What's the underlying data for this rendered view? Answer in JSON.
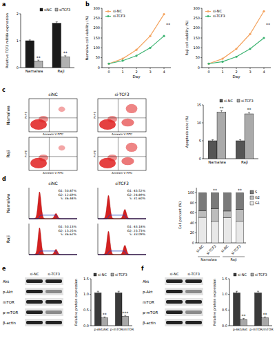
{
  "panel_labels": [
    "a",
    "b",
    "c",
    "d",
    "e",
    "f"
  ],
  "chart_data": [
    {
      "type": "bar",
      "y_label": "Relative TCF3 mRNA expression",
      "categories": [
        "Namalwa",
        "Raji"
      ],
      "series": [
        {
          "name": "siNC",
          "color": "#1a1a1a",
          "values": [
            1,
            1.65
          ],
          "errors": [
            0.03,
            0.05
          ]
        },
        {
          "name": "siTCF3",
          "color": "#b0b0b0",
          "values": [
            0.25,
            0.4
          ],
          "errors": [
            0.03,
            0.04
          ],
          "significance": [
            "**",
            "**"
          ]
        }
      ],
      "ylim": [
        0,
        2
      ],
      "yticks": [
        0,
        1,
        2
      ],
      "legend": "top-right"
    },
    {
      "type": "line",
      "y_label": "Namalwa cell viability (%)",
      "x_label": "Day",
      "x": [
        0,
        1,
        2,
        3,
        4
      ],
      "xlim": [
        -0.5,
        4.5
      ],
      "xticks": [
        0,
        1,
        2,
        3,
        4
      ],
      "series": [
        {
          "name": "si-NC",
          "color": "#f4a460",
          "marker": "circle",
          "values": [
            20,
            45,
            90,
            160,
            270
          ]
        },
        {
          "name": "si-TCF3",
          "color": "#3cb371",
          "marker": "circle",
          "values": [
            20,
            35,
            60,
            100,
            160
          ]
        }
      ],
      "ylim": [
        0,
        300
      ],
      "yticks": [
        0,
        50,
        100,
        150,
        200,
        250,
        300
      ],
      "legend": "top-left",
      "annotations": [
        {
          "text": "**",
          "x": 4
        }
      ]
    },
    {
      "type": "line",
      "y_label": "Raji cell viability (%)",
      "x_label": "Day",
      "x": [
        0,
        1,
        2,
        3,
        4
      ],
      "xlim": [
        -0.5,
        4.5
      ],
      "xticks": [
        0,
        1,
        2,
        3,
        4
      ],
      "series": [
        {
          "name": "si-NC",
          "color": "#f4a460",
          "marker": "circle",
          "values": [
            20,
            45,
            95,
            170,
            285
          ]
        },
        {
          "name": "si-TCF3",
          "color": "#3cb371",
          "marker": "circle",
          "values": [
            20,
            30,
            55,
            95,
            150
          ]
        }
      ],
      "ylim": [
        0,
        300
      ],
      "yticks": [
        0,
        50,
        100,
        150,
        200,
        250,
        300
      ],
      "legend": "top-left",
      "annotations": [
        {
          "text": "**",
          "x": 4
        }
      ]
    },
    {
      "type": "bar",
      "y_label": "Apoptosis rate (%)",
      "categories": [
        "Namalwa",
        "Raji"
      ],
      "series": [
        {
          "name": "si-NC",
          "color": "#555555",
          "values": [
            5,
            5
          ],
          "errors": [
            0.3,
            0.3
          ]
        },
        {
          "name": "si-TCF3",
          "color": "#aaaaaa",
          "values": [
            13,
            12.5
          ],
          "errors": [
            0.4,
            0.4
          ],
          "significance": [
            "**",
            "**"
          ]
        }
      ],
      "ylim": [
        0,
        15
      ],
      "yticks": [
        0,
        5,
        10,
        15
      ],
      "legend": "top-right"
    },
    {
      "type": "bar",
      "stacked": true,
      "y_label": "Cell percent (%)",
      "categories": [
        "si-NC",
        "si-TCF3",
        "si-NC",
        "si-TCF3"
      ],
      "group_labels": [
        "Namalwa",
        "Raji"
      ],
      "series": [
        {
          "name": "G1",
          "color": "#e8e8e8",
          "values": [
            50.87,
            43.52,
            50.13,
            43.18
          ]
        },
        {
          "name": "G2",
          "color": "#bdbdbd",
          "values": [
            12.69,
            24.89,
            13.25,
            23.73
          ],
          "significance": [
            null,
            "**",
            null,
            "**"
          ]
        },
        {
          "name": "S",
          "color": "#7a7a7a",
          "values": [
            36.44,
            31.6,
            36.62,
            33.09
          ]
        }
      ],
      "ylim": [
        0,
        110
      ],
      "yticks": [
        0,
        20,
        40,
        60,
        80,
        100
      ],
      "legend": "right"
    },
    {
      "type": "bar",
      "y_label": "Relative protein expression",
      "categories": [
        "p-Akt/Akt",
        "p-mTOR/mTOR"
      ],
      "series": [
        {
          "name": "si-NC",
          "color": "#3a3a3a",
          "values": [
            1.05,
            1.05
          ],
          "errors": [
            0.05,
            0.05
          ]
        },
        {
          "name": "si-TCF3",
          "color": "#a8a8a8",
          "values": [
            0.25,
            0.3
          ],
          "errors": [
            0.03,
            0.03
          ],
          "significance": [
            "**",
            "***"
          ]
        }
      ],
      "ylim": [
        0,
        1.5
      ],
      "yticks": [
        {
          "value": 0,
          "label": "0.0"
        },
        0.5,
        {
          "value": 1,
          "label": "1.0"
        },
        1.5
      ],
      "legend": "top-right"
    },
    {
      "type": "bar",
      "y_label": "Relative protein expression",
      "categories": [
        "p-Akt/Akt",
        "p-mTOR/mTOR"
      ],
      "series": [
        {
          "name": "si-NC",
          "color": "#3a3a3a",
          "values": [
            1.05,
            1.05
          ],
          "errors": [
            0.05,
            0.05
          ]
        },
        {
          "name": "si-TCF3",
          "color": "#a8a8a8",
          "values": [
            0.2,
            0.25
          ],
          "errors": [
            0.03,
            0.03
          ],
          "significance": [
            "**",
            "**"
          ]
        }
      ],
      "ylim": [
        0,
        1.5
      ],
      "yticks": [
        {
          "value": 0,
          "label": "0.0"
        },
        0.5,
        {
          "value": 1,
          "label": "1.0"
        },
        1.5
      ],
      "legend": "top-right"
    }
  ],
  "flow": {
    "columns": [
      "siNC",
      "si-TCF3"
    ],
    "rows": [
      "Namalwa",
      "Raji"
    ],
    "x_label": "Annexin V FITC",
    "y_label": "PI-PE"
  },
  "cell_cycle": {
    "columns": [
      "siNC",
      "siTCF3"
    ],
    "rows": [
      {
        "label": "Namalwa",
        "cells": [
          [
            "G1: 50.87%",
            "G2: 12.69%",
            "S: 36.44%"
          ],
          [
            "G1: 43.52%",
            "G2: 24.89%",
            "S: 31.60%"
          ]
        ]
      },
      {
        "label": "Raji",
        "cells": [
          [
            "G1: 50.13%",
            "G2: 13.25%",
            "S: 36.62%"
          ],
          [
            "G1: 43.18%",
            "G2: 23.73%",
            "S: 33.09%"
          ]
        ]
      }
    ]
  },
  "blots": [
    {
      "columns": [
        "si-NC",
        "si-TCF3"
      ],
      "rows": [
        "Akt",
        "p-Akt",
        "mTOR",
        "p-mTOR",
        "β-actin"
      ]
    },
    {
      "columns": [
        "si-NC",
        "si-TCF3"
      ],
      "rows": [
        "Akt",
        "p-Akt",
        "mTOR",
        "p-mTOR",
        "β-actin"
      ]
    }
  ]
}
